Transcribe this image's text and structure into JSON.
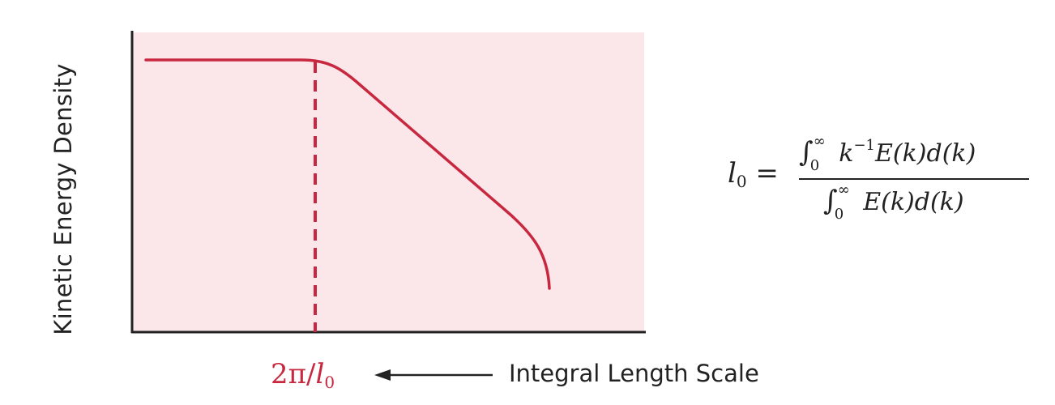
{
  "diagram": {
    "y_axis_label": "Kinetic Energy Density",
    "marker_label": {
      "prefix": "2π/",
      "symbol": "l",
      "subscript": "0"
    },
    "arrow_label": "Integral Length Scale",
    "formula": {
      "lhs_symbol": "l",
      "lhs_subscript": "0",
      "equals": "=",
      "integral": "∫",
      "lower_limit": "0",
      "upper_limit": "∞",
      "numerator_k": "k",
      "numerator_power": "−1",
      "numerator_rest": "E(k)d(k)",
      "denominator_rest": "E(k)d(k)"
    },
    "colors": {
      "curve": "#c8283f",
      "plot_background": "#fbe6ea",
      "axis": "#222222",
      "text": "#222222"
    }
  }
}
